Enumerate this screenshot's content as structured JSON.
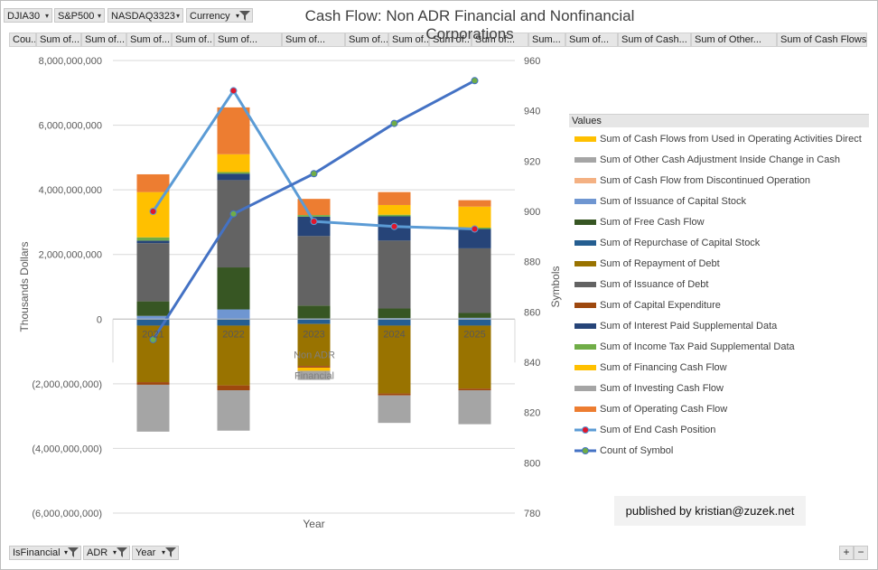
{
  "filters": [
    {
      "label": "DJIA30",
      "icon": "chevron-down-icon"
    },
    {
      "label": "S&P500",
      "icon": "chevron-down-icon"
    },
    {
      "label": "NASDAQ3323",
      "icon": "chevron-down-icon"
    },
    {
      "label": "Currency",
      "icon": "funnel-icon"
    }
  ],
  "value_fields": [
    "Cou...",
    "Sum of...",
    "Sum of...",
    "Sum of...",
    "Sum of...",
    "Sum of...",
    "Sum of...",
    "Sum of...",
    "Sum of...",
    "Sum of...",
    "Sum of...",
    "Sum...",
    "Sum of...",
    "Sum of Cash...",
    "Sum of Other...",
    "Sum of Cash Flows..."
  ],
  "bottom_filters": [
    {
      "label": "IsFinancial",
      "icon": "funnel-icon"
    },
    {
      "label": "ADR",
      "icon": "funnel-icon"
    },
    {
      "label": "Year",
      "icon": "funnel-icon"
    }
  ],
  "zoom": {
    "plus": "+",
    "minus": "−"
  },
  "published": "published by kristian@zuzek.net",
  "legend_title": "Values",
  "chart_data": {
    "type": "bar",
    "title": "Cash Flow: Non ADR Financial and Nonfinancial Corporations",
    "xlabel": "Year",
    "ylabel": "Thousands Dollars",
    "y2label": "Symbols",
    "categories": [
      "2021",
      "2022",
      "2023",
      "2024",
      "2025"
    ],
    "group_label": "Non ADR Financial",
    "ylim": [
      -6000000000,
      8000000000
    ],
    "y2lim": [
      780,
      960
    ],
    "yticks": [
      "8,000,000,000",
      "6,000,000,000",
      "4,000,000,000",
      "2,000,000,000",
      "0",
      "(2,000,000,000)",
      "(4,000,000,000)",
      "(6,000,000,000)"
    ],
    "y2ticks": [
      "960",
      "940",
      "920",
      "900",
      "880",
      "860",
      "840",
      "820",
      "800",
      "780"
    ],
    "grid": true,
    "legend_position": "right",
    "series": [
      {
        "name": "Sum of Cash Flows from Used in Operating Activities Direct",
        "color": "#ffc000",
        "values": [
          0,
          0,
          0,
          0,
          0
        ]
      },
      {
        "name": "Sum of Other Cash Adjustment Inside Change in Cash",
        "color": "#a5a5a5",
        "values": [
          0,
          0,
          0,
          0,
          0
        ]
      },
      {
        "name": "Sum of Cash Flow from Discontinued Operation",
        "color": "#f4b183",
        "values": [
          0,
          0,
          0,
          0,
          0
        ]
      },
      {
        "name": "Sum of Issuance of Capital Stock",
        "color": "#6f96d1",
        "values": [
          100000000,
          300000000,
          20000000,
          30000000,
          40000000
        ]
      },
      {
        "name": "Sum of Free Cash Flow",
        "color": "#375623",
        "values": [
          450000000,
          1300000000,
          400000000,
          300000000,
          150000000
        ]
      },
      {
        "name": "Sum of Repurchase of Capital Stock",
        "color": "#255e91",
        "values": [
          -200000000,
          -200000000,
          -150000000,
          -200000000,
          -200000000
        ]
      },
      {
        "name": "Sum of Repayment of Debt",
        "color": "#997300",
        "values": [
          -1750000000,
          -1850000000,
          -1300000000,
          -2100000000,
          -1950000000
        ]
      },
      {
        "name": "Sum of Issuance of Debt",
        "color": "#636363",
        "values": [
          1800000000,
          2700000000,
          2150000000,
          2100000000,
          2000000000
        ]
      },
      {
        "name": "Sum of Capital Expenditure",
        "color": "#9e480e",
        "values": [
          -80000000,
          -150000000,
          -50000000,
          -60000000,
          -50000000
        ]
      },
      {
        "name": "Sum of Interest Paid Supplemental Data",
        "color": "#264478",
        "values": [
          80000000,
          200000000,
          600000000,
          750000000,
          600000000
        ]
      },
      {
        "name": "Sum of Income Tax Paid Supplemental Data",
        "color": "#70ad47",
        "values": [
          100000000,
          50000000,
          50000000,
          50000000,
          40000000
        ]
      },
      {
        "name": "Sum of Financing Cash Flow",
        "color": "#ffc000",
        "values": [
          1400000000,
          550000000,
          -100000000,
          300000000,
          650000000
        ]
      },
      {
        "name": "Sum of Investing Cash Flow",
        "color": "#a5a5a5",
        "values": [
          -1450000000,
          -1250000000,
          -280000000,
          -850000000,
          -1050000000
        ]
      },
      {
        "name": "Sum of Operating Cash Flow",
        "color": "#ed7d31",
        "values": [
          550000000,
          1450000000,
          500000000,
          400000000,
          200000000
        ]
      },
      {
        "name": "Sum of End Cash Position",
        "color": "#5b9bd5",
        "type": "line",
        "axis": "secondary",
        "values": [
          900,
          948,
          896,
          894,
          893
        ]
      },
      {
        "name": "Count of Symbol",
        "color": "#4472c4",
        "type": "line",
        "axis": "secondary",
        "values": [
          849,
          899,
          915,
          935,
          952
        ]
      }
    ]
  }
}
